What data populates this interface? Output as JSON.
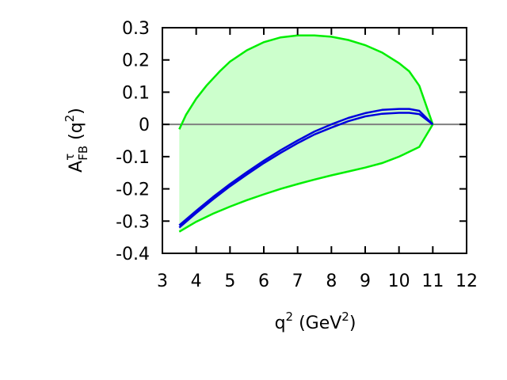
{
  "chart_data": {
    "type": "area",
    "xlabel": {
      "base": "q",
      "sup": "2",
      "unit_open": " (GeV",
      "unit_sup": "2",
      "unit_close": ")"
    },
    "ylabel": {
      "base": "A",
      "sup": "τ",
      "sub": "FB",
      "arg_open": " (q",
      "arg_sup": "2",
      "arg_close": ")"
    },
    "xlim": [
      3,
      12
    ],
    "ylim": [
      -0.4,
      0.3
    ],
    "xticks": [
      3,
      4,
      5,
      6,
      7,
      8,
      9,
      10,
      11,
      12
    ],
    "yticks": [
      0.3,
      0.2,
      0.1,
      0,
      -0.1,
      -0.2,
      -0.3,
      -0.4
    ],
    "grid": false,
    "legend": "none",
    "zero_line": {
      "y": 0,
      "color": "#808080"
    },
    "band": {
      "fill_color": "#ccffcc",
      "edge_color": "#00ee00",
      "upper": [
        [
          3.5,
          -0.015
        ],
        [
          3.7,
          0.03
        ],
        [
          4.0,
          0.08
        ],
        [
          4.3,
          0.12
        ],
        [
          4.7,
          0.165
        ],
        [
          5.0,
          0.195
        ],
        [
          5.5,
          0.23
        ],
        [
          6.0,
          0.255
        ],
        [
          6.5,
          0.27
        ],
        [
          7.0,
          0.276
        ],
        [
          7.5,
          0.276
        ],
        [
          8.0,
          0.272
        ],
        [
          8.5,
          0.262
        ],
        [
          9.0,
          0.246
        ],
        [
          9.5,
          0.223
        ],
        [
          10.0,
          0.19
        ],
        [
          10.3,
          0.165
        ],
        [
          10.6,
          0.12
        ],
        [
          11.0,
          0.0
        ]
      ],
      "lower": [
        [
          3.5,
          -0.333
        ],
        [
          4.0,
          -0.302
        ],
        [
          4.5,
          -0.277
        ],
        [
          5.0,
          -0.255
        ],
        [
          5.5,
          -0.235
        ],
        [
          6.0,
          -0.217
        ],
        [
          6.5,
          -0.2
        ],
        [
          7.0,
          -0.185
        ],
        [
          7.5,
          -0.171
        ],
        [
          8.0,
          -0.158
        ],
        [
          8.5,
          -0.146
        ],
        [
          9.0,
          -0.134
        ],
        [
          9.5,
          -0.12
        ],
        [
          10.0,
          -0.1
        ],
        [
          10.3,
          -0.085
        ],
        [
          10.6,
          -0.07
        ],
        [
          11.0,
          0.0
        ]
      ]
    },
    "series": [
      {
        "color": "#0000dd",
        "values": [
          [
            3.5,
            -0.313
          ],
          [
            4.0,
            -0.268
          ],
          [
            4.5,
            -0.225
          ],
          [
            5.0,
            -0.185
          ],
          [
            5.5,
            -0.148
          ],
          [
            6.0,
            -0.113
          ],
          [
            6.5,
            -0.08
          ],
          [
            7.0,
            -0.05
          ],
          [
            7.5,
            -0.022
          ],
          [
            8.0,
            0.0
          ],
          [
            8.5,
            0.02
          ],
          [
            9.0,
            0.035
          ],
          [
            9.5,
            0.045
          ],
          [
            10.0,
            0.048
          ],
          [
            10.3,
            0.048
          ],
          [
            10.6,
            0.042
          ],
          [
            11.0,
            0.0
          ]
        ]
      },
      {
        "color": "#0000dd",
        "values": [
          [
            3.5,
            -0.32
          ],
          [
            4.0,
            -0.275
          ],
          [
            4.5,
            -0.232
          ],
          [
            5.0,
            -0.192
          ],
          [
            5.5,
            -0.155
          ],
          [
            6.0,
            -0.12
          ],
          [
            6.5,
            -0.088
          ],
          [
            7.0,
            -0.058
          ],
          [
            7.5,
            -0.031
          ],
          [
            8.0,
            -0.01
          ],
          [
            8.5,
            0.01
          ],
          [
            9.0,
            0.025
          ],
          [
            9.5,
            0.033
          ],
          [
            10.0,
            0.036
          ],
          [
            10.3,
            0.036
          ],
          [
            10.6,
            0.032
          ],
          [
            11.0,
            0.0
          ]
        ]
      }
    ]
  }
}
